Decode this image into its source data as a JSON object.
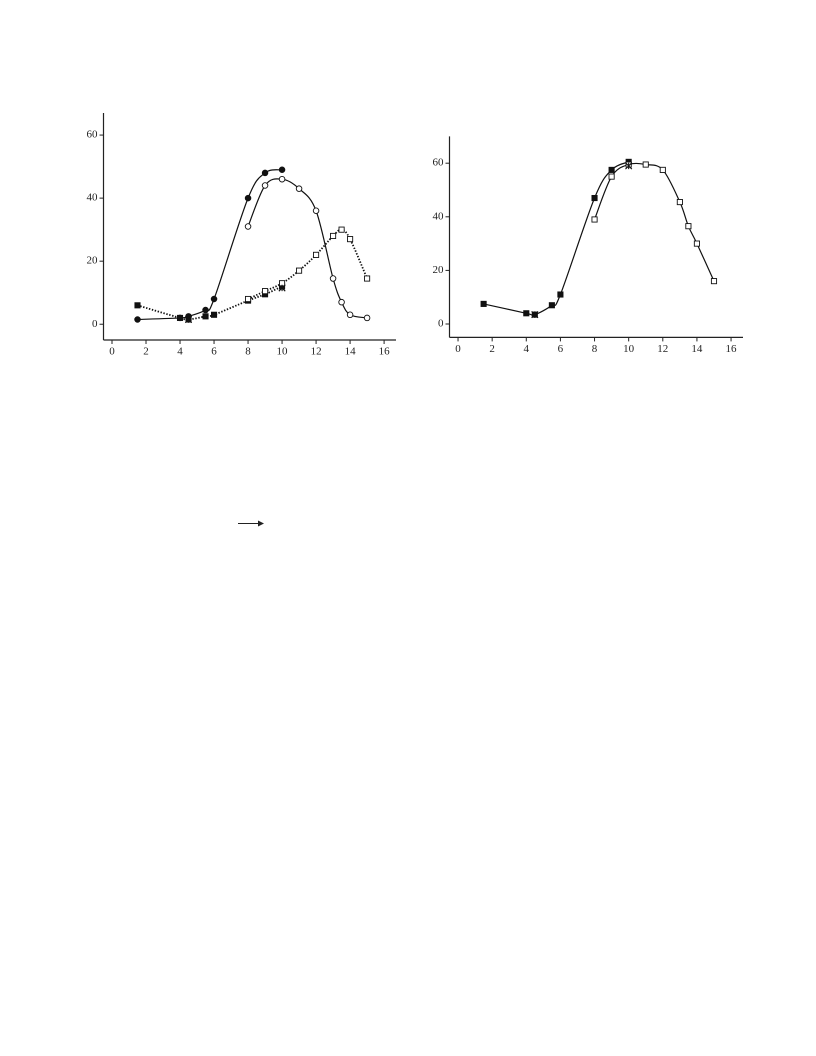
{
  "chart_data": [
    {
      "type": "line",
      "xlim": [
        -0.5,
        16.7
      ],
      "ylim": [
        -5,
        67
      ],
      "xticks": [
        0,
        2,
        4,
        6,
        8,
        10,
        12,
        14,
        16
      ],
      "yticks": [
        0,
        20,
        40,
        60
      ],
      "series": [
        {
          "color": "#111",
          "marker": "filled-circle",
          "line": "solid",
          "x": [
            1.5,
            4,
            4.5,
            5.5,
            6,
            8,
            9,
            10
          ],
          "values": [
            1.5,
            2,
            2.5,
            4.5,
            8,
            40,
            48,
            49
          ]
        },
        {
          "color": "#111",
          "marker": "open-circle",
          "line": "solid",
          "x": [
            8,
            9,
            10,
            11,
            12,
            13,
            13.5,
            14,
            15
          ],
          "values": [
            31,
            44,
            46,
            43,
            36,
            14.5,
            7,
            3,
            2
          ]
        },
        {
          "color": "#111",
          "marker": "filled-square",
          "line": "dotted",
          "x": [
            1.5,
            4,
            4.5,
            5.5,
            6,
            8,
            9,
            10
          ],
          "values": [
            6,
            2,
            1.5,
            2.5,
            3,
            7.5,
            9.5,
            12
          ]
        },
        {
          "color": "#111",
          "marker": "open-square",
          "line": "dotted",
          "x": [
            8,
            9,
            10,
            11,
            12,
            13,
            13.5,
            14,
            15
          ],
          "values": [
            8,
            10.5,
            13,
            17,
            22,
            28,
            30,
            27,
            14.5
          ]
        },
        {
          "color": "#111",
          "marker": "star",
          "line": "none",
          "x": [
            4.5,
            10
          ],
          "values": [
            1.5,
            11.5
          ]
        }
      ]
    },
    {
      "type": "line",
      "xlim": [
        -0.5,
        16.7
      ],
      "ylim": [
        -5,
        70
      ],
      "xticks": [
        0,
        2,
        4,
        6,
        8,
        10,
        12,
        14,
        16
      ],
      "yticks": [
        0,
        20,
        40,
        60
      ],
      "series": [
        {
          "color": "#111",
          "marker": "filled-square",
          "line": "solid",
          "x": [
            1.5,
            4,
            4.5,
            5.5,
            6,
            8,
            9,
            10
          ],
          "values": [
            7.5,
            4,
            3.5,
            7,
            11,
            47,
            57.5,
            60.5
          ]
        },
        {
          "color": "#111",
          "marker": "open-square",
          "line": "solid",
          "x": [
            8,
            9,
            10,
            11,
            12,
            13,
            13.5,
            14,
            15
          ],
          "values": [
            39,
            55,
            59.5,
            59.5,
            57.5,
            45.5,
            36.5,
            30,
            16
          ]
        },
        {
          "color": "#111",
          "marker": "star",
          "line": "none",
          "x": [
            4.5,
            10
          ],
          "values": [
            3.5,
            59
          ]
        }
      ]
    }
  ]
}
